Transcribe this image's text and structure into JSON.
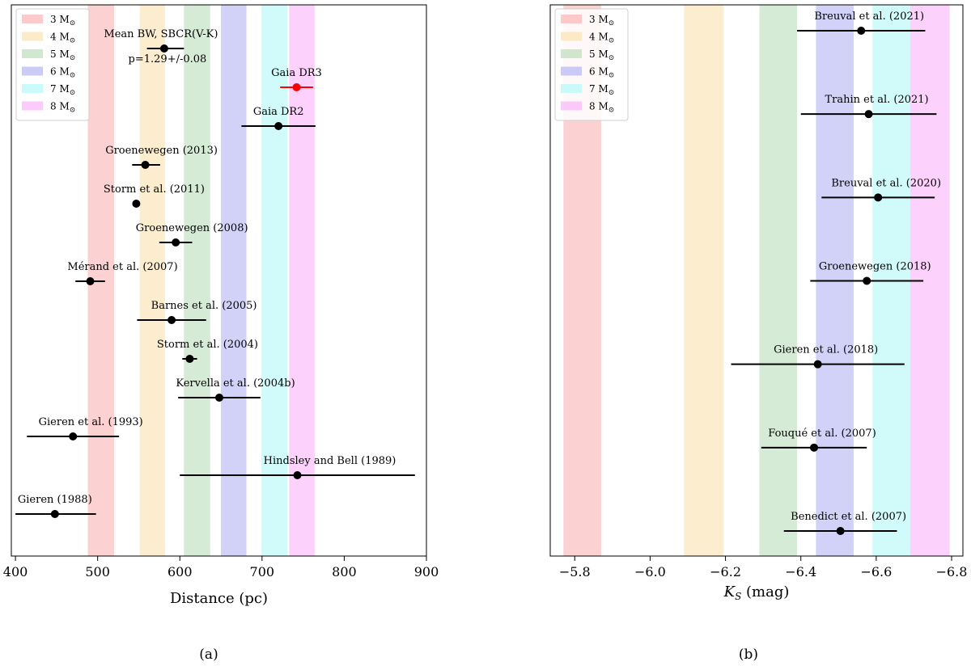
{
  "chart_data": [
    {
      "type": "errorbar",
      "panel": "a",
      "caption": "(a)",
      "xlabel": "Distance (pc)",
      "xlim": [
        395,
        900
      ],
      "xticks": [
        400,
        500,
        600,
        700,
        800,
        900
      ],
      "xtick_labels": [
        "400",
        "500",
        "600",
        "700",
        "800",
        "900"
      ],
      "legend_position": "top-left",
      "bands": [
        {
          "label": "3 M",
          "sub": "⊙",
          "range": [
            488,
            520
          ],
          "color": "#fbb8b8"
        },
        {
          "label": "4 M",
          "sub": "⊙",
          "range": [
            551,
            582
          ],
          "color": "#fbe4b5"
        },
        {
          "label": "5 M",
          "sub": "⊙",
          "range": [
            605,
            637
          ],
          "color": "#bfe0bf"
        },
        {
          "label": "6 M",
          "sub": "⊙",
          "range": [
            650,
            681
          ],
          "color": "#babaf5"
        },
        {
          "label": "7 M",
          "sub": "⊙",
          "range": [
            699,
            731
          ],
          "color": "#b8f9f9"
        },
        {
          "label": "8 M",
          "sub": "⊙",
          "range": [
            733,
            764
          ],
          "color": "#fab9fa"
        }
      ],
      "points": [
        {
          "name": "Mean BW, SBCR(V-K)",
          "value": 581,
          "err": [
            21,
            24
          ],
          "color": "#000000",
          "label_dx": -4,
          "label_dy": -14,
          "sublabel": "p=1.29+/-0.08"
        },
        {
          "name": "Gaia DR3",
          "value": 742,
          "err": [
            20,
            20
          ],
          "color": "#ff0000",
          "label_dx": 0,
          "label_dy": -14
        },
        {
          "name": "Gaia DR2",
          "value": 720,
          "err": [
            45,
            45
          ],
          "color": "#000000",
          "label_dx": 0,
          "label_dy": -14
        },
        {
          "name": "Groenewegen (2013)",
          "value": 558,
          "err": [
            16,
            18
          ],
          "color": "#000000",
          "label_dx": 20,
          "label_dy": -14
        },
        {
          "name": "Storm et al. (2011)",
          "value": 547,
          "err": [
            4,
            4
          ],
          "color": "#000000",
          "label_dx": 22,
          "label_dy": -14
        },
        {
          "name": "Groenewegen (2008)",
          "value": 595,
          "err": [
            20,
            20
          ],
          "color": "#000000",
          "label_dx": 20,
          "label_dy": -14
        },
        {
          "name": "Mérand et al. (2007)",
          "value": 491,
          "err": [
            18,
            18
          ],
          "color": "#000000",
          "label_dx": 40,
          "label_dy": -14
        },
        {
          "name": "Barnes et al. (2005)",
          "value": 590,
          "err": [
            42,
            42
          ],
          "color": "#000000",
          "label_dx": 40,
          "label_dy": -14
        },
        {
          "name": "Storm et al. (2004)",
          "value": 612,
          "err": [
            9,
            9
          ],
          "color": "#000000",
          "label_dx": 22,
          "label_dy": -14
        },
        {
          "name": "Kervella et al. (2004b)",
          "value": 648,
          "err": [
            50,
            50
          ],
          "color": "#000000",
          "label_dx": 20,
          "label_dy": -14
        },
        {
          "name": "Gieren et al. (1993)",
          "value": 470,
          "err": [
            56,
            56
          ],
          "color": "#000000",
          "label_dx": 22,
          "label_dy": -14
        },
        {
          "name": "Hindsley and Bell (1989)",
          "value": 743,
          "err": [
            143,
            143
          ],
          "color": "#000000",
          "label_dx": 40,
          "label_dy": -14
        },
        {
          "name": "Gieren (1988)",
          "value": 448,
          "err": [
            48,
            50
          ],
          "color": "#000000",
          "label_dx": 0,
          "label_dy": -14
        }
      ]
    },
    {
      "type": "errorbar",
      "panel": "b",
      "caption": "(b)",
      "xlabel": "K",
      "xlabel_sub": "S",
      "xlabel_unit": " (mag)",
      "xlim": [
        -5.735,
        -6.83
      ],
      "xticks": [
        -5.8,
        -6.0,
        -6.2,
        -6.4,
        -6.6,
        -6.8
      ],
      "xtick_labels": [
        "−5.8",
        "−6.0",
        "−6.2",
        "−6.4",
        "−6.6",
        "−6.8"
      ],
      "legend_position": "top-left",
      "bands": [
        {
          "label": "3 M",
          "sub": "⊙",
          "range": [
            -5.77,
            -5.87
          ],
          "color": "#fbb8b8"
        },
        {
          "label": "4 M",
          "sub": "⊙",
          "range": [
            -6.09,
            -6.195
          ],
          "color": "#fbe4b5"
        },
        {
          "label": "5 M",
          "sub": "⊙",
          "range": [
            -6.29,
            -6.39
          ],
          "color": "#bfe0bf"
        },
        {
          "label": "6 M",
          "sub": "⊙",
          "range": [
            -6.44,
            -6.54
          ],
          "color": "#babaf5"
        },
        {
          "label": "7 M",
          "sub": "⊙",
          "range": [
            -6.59,
            -6.69
          ],
          "color": "#b8f9f9"
        },
        {
          "label": "8 M",
          "sub": "⊙",
          "range": [
            -6.69,
            -6.795
          ],
          "color": "#fab9fa"
        }
      ],
      "points": [
        {
          "name": "Breuval et al. (2021)",
          "value": -6.56,
          "err": [
            0.17,
            0.17
          ],
          "color": "#000000",
          "label_dx": 10,
          "label_dy": -14
        },
        {
          "name": "Trahin et al. (2021)",
          "value": -6.58,
          "err": [
            0.18,
            0.18
          ],
          "color": "#000000",
          "label_dx": 10,
          "label_dy": -14
        },
        {
          "name": "Breuval et al. (2020)",
          "value": -6.605,
          "err": [
            0.15,
            0.15
          ],
          "color": "#000000",
          "label_dx": 10,
          "label_dy": -14
        },
        {
          "name": "Groenewegen (2018)",
          "value": -6.575,
          "err": [
            0.15,
            0.15
          ],
          "color": "#000000",
          "label_dx": 10,
          "label_dy": -14
        },
        {
          "name": "Gieren et al. (2018)",
          "value": -6.445,
          "err": [
            0.23,
            0.23
          ],
          "color": "#000000",
          "label_dx": 10,
          "label_dy": -14
        },
        {
          "name": "Fouqué et al. (2007)",
          "value": -6.435,
          "err": [
            0.14,
            0.14
          ],
          "color": "#000000",
          "label_dx": 10,
          "label_dy": -14
        },
        {
          "name": "Benedict et al. (2007)",
          "value": -6.505,
          "err": [
            0.15,
            0.15
          ],
          "color": "#000000",
          "label_dx": 10,
          "label_dy": -14
        }
      ]
    }
  ]
}
